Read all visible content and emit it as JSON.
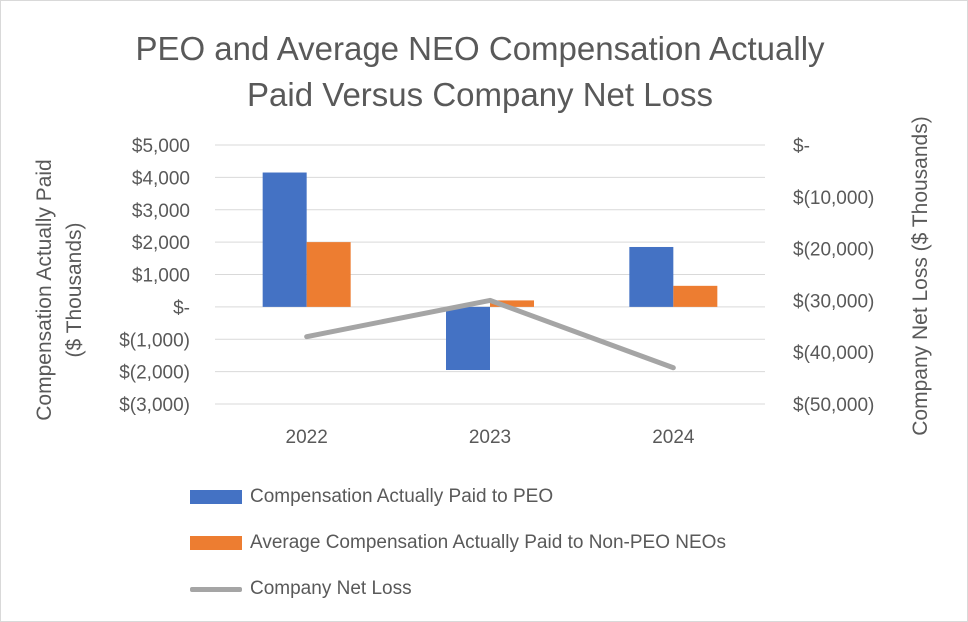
{
  "chart_data": {
    "type": "bar",
    "title_lines": [
      "PEO and Average NEO Compensation Actually",
      "Paid Versus Company Net Loss"
    ],
    "categories": [
      "2022",
      "2023",
      "2024"
    ],
    "series": [
      {
        "name": "Compensation Actually Paid to PEO",
        "type": "bar",
        "axis": "left",
        "color": "#4472c4",
        "values": [
          4150,
          -1950,
          1850
        ]
      },
      {
        "name": "Average Compensation Actually Paid to Non-PEO NEOs",
        "type": "bar",
        "axis": "left",
        "color": "#ed7d31",
        "values": [
          2000,
          200,
          650
        ]
      },
      {
        "name": "Company Net Loss",
        "type": "line",
        "axis": "right",
        "color": "#a5a5a5",
        "values": [
          -37000,
          -30000,
          -43000
        ]
      }
    ],
    "left_axis": {
      "title_lines": [
        "Compensation Actually Paid",
        "($ Thousands)"
      ],
      "ylim": [
        -3000,
        5000
      ],
      "ticks": [
        5000,
        4000,
        3000,
        2000,
        1000,
        0,
        -1000,
        -2000,
        -3000
      ],
      "tick_labels": [
        "$5,000",
        "$4,000",
        "$3,000",
        "$2,000",
        "$1,000",
        "$-",
        "$(1,000)",
        "$(2,000)",
        "$(3,000)"
      ]
    },
    "right_axis": {
      "title": "Company Net Loss ($ Thousands)",
      "ylim": [
        -50000,
        0
      ],
      "ticks": [
        0,
        -10000,
        -20000,
        -30000,
        -40000,
        -50000
      ],
      "tick_labels": [
        "$-",
        "$(10,000)",
        "$(20,000)",
        "$(30,000)",
        "$(40,000)",
        "$(50,000)"
      ]
    },
    "grid": true,
    "legend_position": "bottom-left"
  }
}
